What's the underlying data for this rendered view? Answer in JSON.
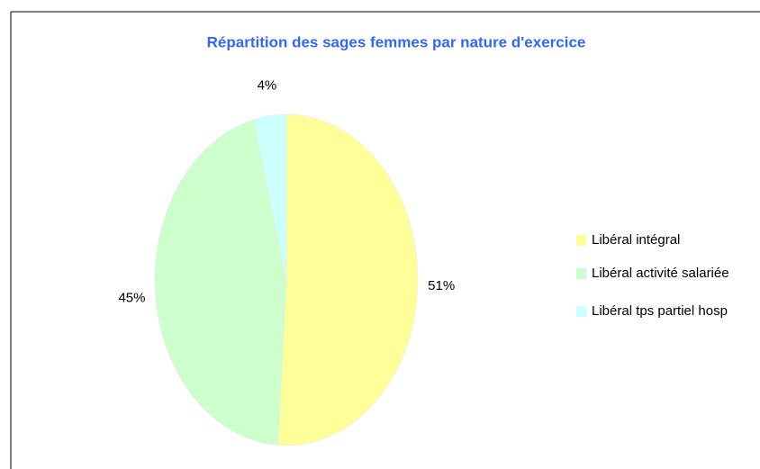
{
  "chart_data": {
    "type": "pie",
    "title": "Répartition des sages femmes par nature d'exercice",
    "categories": [
      "Libéral intégral",
      "Libéral activité salariée",
      "Libéral tps partiel hosp"
    ],
    "values": [
      51,
      45,
      4
    ],
    "value_labels": [
      "51%",
      "45%",
      "4%"
    ],
    "colors": [
      "#ffff99",
      "#ccffcc",
      "#ccffff"
    ],
    "legend": "right"
  }
}
